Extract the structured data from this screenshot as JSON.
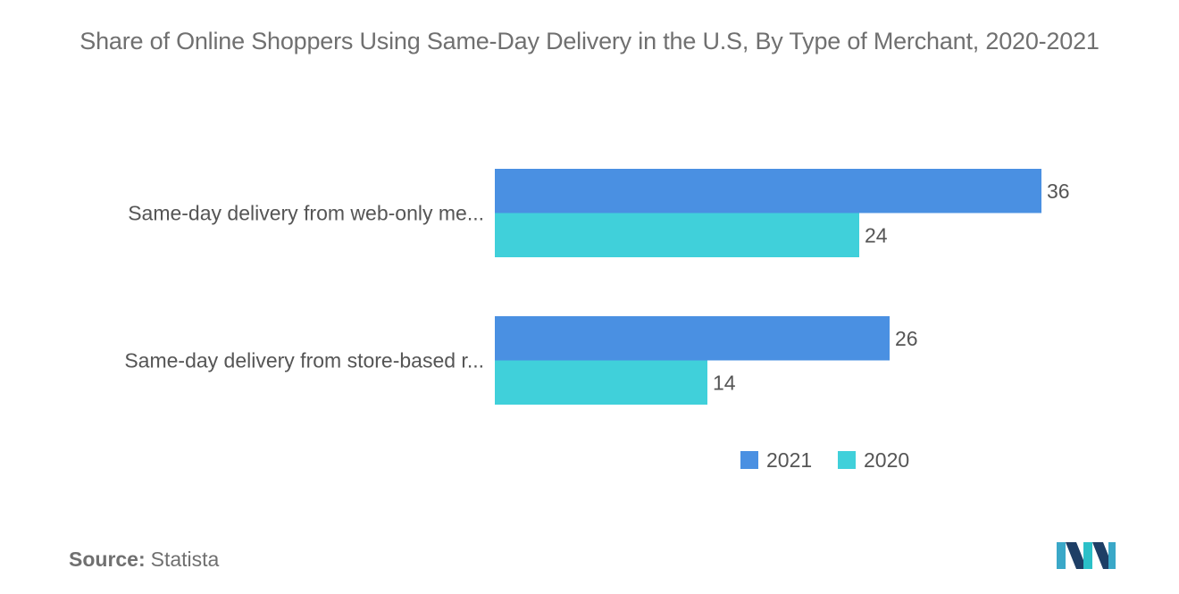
{
  "chart_data": {
    "type": "bar",
    "orientation": "horizontal",
    "title": "Share of Online Shoppers Using Same-Day Delivery in the U.S, By Type of Merchant, 2020-2021",
    "categories": [
      "Same-day delivery from web-only me...",
      "Same-day delivery from store-based r..."
    ],
    "series": [
      {
        "name": "2021",
        "values": [
          36,
          26
        ],
        "color": "#4a90e2"
      },
      {
        "name": "2020",
        "values": [
          24,
          14
        ],
        "color": "#40d0da"
      }
    ],
    "xlim": [
      0,
      40
    ],
    "grid": false,
    "legend_position": "bottom"
  },
  "source": {
    "label": "Source:",
    "value": "Statista"
  },
  "logo_icon": "mordor-intelligence-logo-icon"
}
